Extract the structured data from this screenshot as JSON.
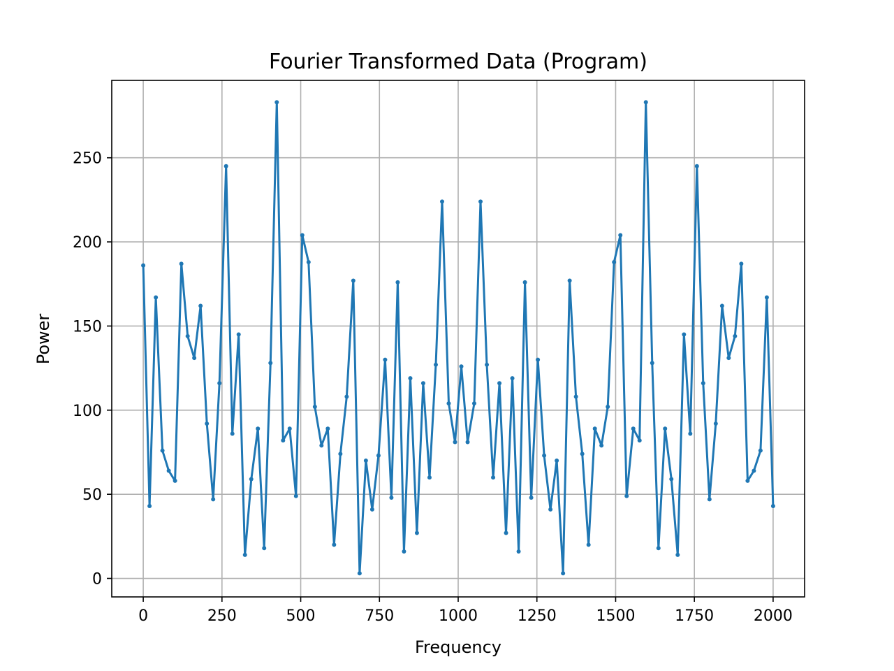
{
  "chart_data": {
    "type": "line",
    "title": "Fourier Transformed Data (Program)",
    "xlabel": "Frequency",
    "ylabel": "Power",
    "xlim": [
      -100,
      2100
    ],
    "ylim": [
      -11,
      296
    ],
    "grid": true,
    "x_ticks": [
      0,
      250,
      500,
      750,
      1000,
      1250,
      1500,
      1750,
      2000
    ],
    "y_ticks": [
      0,
      50,
      100,
      150,
      200,
      250
    ],
    "x_tick_labels": [
      "0",
      "250",
      "500",
      "750",
      "1000",
      "1250",
      "1500",
      "1750",
      "2000"
    ],
    "y_tick_labels": [
      "0",
      "50",
      "100",
      "150",
      "200",
      "250"
    ],
    "line_color": "#1f77b4",
    "markers": true,
    "series": [
      {
        "x": [
          0,
          20,
          40,
          61,
          81,
          101,
          121,
          141,
          162,
          182,
          202,
          222,
          242,
          263,
          283,
          303,
          323,
          343,
          364,
          384,
          404,
          424,
          444,
          465,
          485,
          505,
          525,
          545,
          566,
          586,
          606,
          626,
          646,
          667,
          687,
          707,
          727,
          747,
          768,
          788,
          808,
          828,
          848,
          869,
          889,
          909,
          929,
          949,
          970,
          990,
          1010,
          1030,
          1051,
          1071,
          1091,
          1111,
          1131,
          1152,
          1172,
          1192,
          1212,
          1232,
          1253,
          1273,
          1293,
          1313,
          1333,
          1354,
          1374,
          1394,
          1414,
          1434,
          1455,
          1475,
          1495,
          1515,
          1535,
          1556,
          1576,
          1596,
          1616,
          1636,
          1657,
          1677,
          1697,
          1717,
          1737,
          1758,
          1778,
          1798,
          1818,
          1838,
          1859,
          1879,
          1899,
          1919,
          1939,
          1960,
          1980,
          2000
        ],
        "values": [
          186,
          43,
          167,
          76,
          64,
          58,
          187,
          144,
          131,
          162,
          92,
          47,
          116,
          245,
          86,
          145,
          14,
          59,
          89,
          18,
          128,
          283,
          82,
          89,
          49,
          204,
          188,
          102,
          79,
          89,
          20,
          74,
          108,
          177,
          3,
          70,
          41,
          73,
          130,
          48,
          176,
          16,
          119,
          27,
          116,
          60,
          127,
          224,
          104,
          81,
          126,
          81,
          104,
          224,
          127,
          60,
          116,
          27,
          119,
          16,
          176,
          48,
          130,
          73,
          41,
          70,
          3,
          177,
          108,
          74,
          20,
          89,
          79,
          102,
          188,
          204,
          49,
          89,
          82,
          283,
          128,
          18,
          89,
          59,
          14,
          145,
          86,
          245,
          116,
          47,
          92,
          162,
          131,
          144,
          187,
          58,
          64,
          76,
          167,
          43
        ]
      }
    ]
  }
}
